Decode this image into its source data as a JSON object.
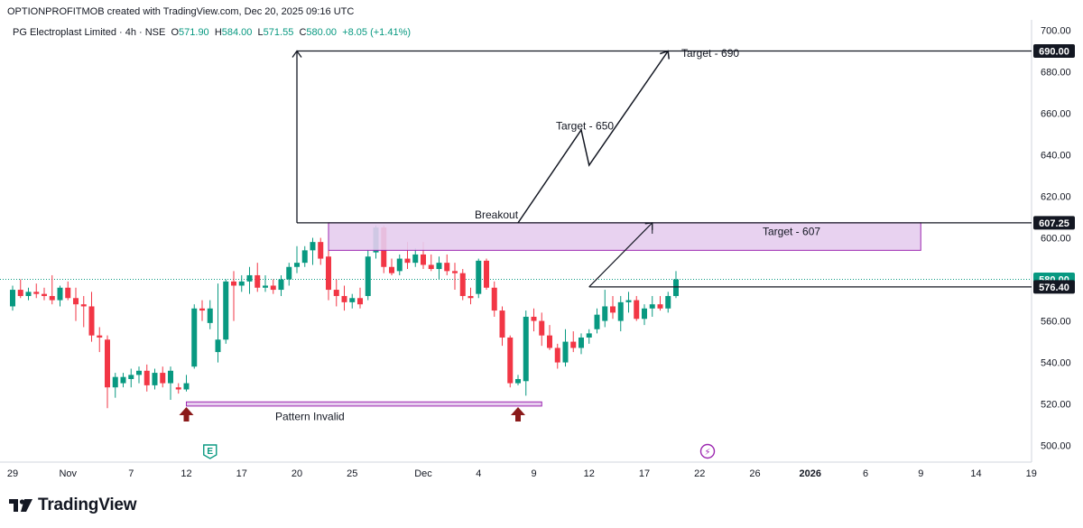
{
  "header": {
    "attribution": "OPTIONPROFITMOB created with TradingView.com, Dec 20, 2025 09:16 UTC"
  },
  "symbol": {
    "name": "PG Electroplast Limited · 4h · NSE",
    "o_label": "O",
    "o": "571.90",
    "h_label": "H",
    "h": "584.00",
    "l_label": "L",
    "l": "571.55",
    "c_label": "C",
    "c": "580.00",
    "change": "+8.05 (+1.41%)"
  },
  "brand": {
    "name": "TradingView",
    "logo_icon": "tradingview-logo-icon"
  },
  "colors": {
    "up": "#089981",
    "down": "#f23645",
    "zone": "#e6cdee",
    "zone_border": "#9c27b0",
    "arrow": "#8b1a1a"
  },
  "chart_data": {
    "type": "candlestick",
    "timeframe": "4h",
    "ylim": [
      492,
      705
    ],
    "y_ticks": [
      500,
      520,
      540,
      560,
      580,
      600,
      620,
      640,
      660,
      680,
      700
    ],
    "x_ticks": [
      {
        "label": "29",
        "slot": 0
      },
      {
        "label": "Nov",
        "slot": 7
      },
      {
        "label": "7",
        "slot": 15
      },
      {
        "label": "12",
        "slot": 22
      },
      {
        "label": "17",
        "slot": 29
      },
      {
        "label": "20",
        "slot": 36
      },
      {
        "label": "25",
        "slot": 43
      },
      {
        "label": "Dec",
        "slot": 52
      },
      {
        "label": "4",
        "slot": 59
      },
      {
        "label": "9",
        "slot": 66
      },
      {
        "label": "12",
        "slot": 73
      },
      {
        "label": "17",
        "slot": 80
      },
      {
        "label": "22",
        "slot": 87
      },
      {
        "label": "26",
        "slot": 94
      },
      {
        "label": "2026",
        "slot": 101
      },
      {
        "label": "6",
        "slot": 108
      },
      {
        "label": "9",
        "slot": 115
      },
      {
        "label": "14",
        "slot": 122
      },
      {
        "label": "19",
        "slot": 129
      }
    ],
    "candles": [
      {
        "o": 567,
        "h": 577,
        "l": 565,
        "c": 575
      },
      {
        "o": 575,
        "h": 580,
        "l": 571,
        "c": 572
      },
      {
        "o": 572,
        "h": 576,
        "l": 570,
        "c": 574
      },
      {
        "o": 574,
        "h": 578,
        "l": 571,
        "c": 573
      },
      {
        "o": 573,
        "h": 576,
        "l": 570,
        "c": 572
      },
      {
        "o": 572,
        "h": 582,
        "l": 568,
        "c": 570
      },
      {
        "o": 570,
        "h": 577,
        "l": 567,
        "c": 576
      },
      {
        "o": 576,
        "h": 579,
        "l": 570,
        "c": 571
      },
      {
        "o": 571,
        "h": 576,
        "l": 560,
        "c": 568
      },
      {
        "o": 568,
        "h": 572,
        "l": 557,
        "c": 567
      },
      {
        "o": 567,
        "h": 574,
        "l": 550,
        "c": 553
      },
      {
        "o": 553,
        "h": 557,
        "l": 545,
        "c": 552
      },
      {
        "o": 551,
        "h": 553,
        "l": 518,
        "c": 528
      },
      {
        "o": 528,
        "h": 535,
        "l": 523,
        "c": 533
      },
      {
        "o": 530,
        "h": 535,
        "l": 528,
        "c": 533
      },
      {
        "o": 532,
        "h": 537,
        "l": 528,
        "c": 534
      },
      {
        "o": 534,
        "h": 538,
        "l": 530,
        "c": 536
      },
      {
        "o": 536,
        "h": 539,
        "l": 526,
        "c": 529
      },
      {
        "o": 529,
        "h": 537,
        "l": 527,
        "c": 535
      },
      {
        "o": 535,
        "h": 538,
        "l": 528,
        "c": 530
      },
      {
        "o": 530,
        "h": 538,
        "l": 522,
        "c": 536
      },
      {
        "o": 528,
        "h": 530,
        "l": 525,
        "c": 527
      },
      {
        "o": 527,
        "h": 534,
        "l": 526,
        "c": 530
      },
      {
        "o": 538,
        "h": 568,
        "l": 537,
        "c": 566
      },
      {
        "o": 566,
        "h": 570,
        "l": 560,
        "c": 565
      },
      {
        "o": 559,
        "h": 570,
        "l": 556,
        "c": 566
      },
      {
        "o": 545,
        "h": 578,
        "l": 540,
        "c": 551
      },
      {
        "o": 551,
        "h": 580,
        "l": 549,
        "c": 579
      },
      {
        "o": 579,
        "h": 584,
        "l": 560,
        "c": 577
      },
      {
        "o": 577,
        "h": 582,
        "l": 574,
        "c": 579
      },
      {
        "o": 579,
        "h": 586,
        "l": 573,
        "c": 582
      },
      {
        "o": 582,
        "h": 588,
        "l": 574,
        "c": 576
      },
      {
        "o": 576,
        "h": 582,
        "l": 574,
        "c": 577
      },
      {
        "o": 577,
        "h": 580,
        "l": 573,
        "c": 575
      },
      {
        "o": 575,
        "h": 582,
        "l": 572,
        "c": 580
      },
      {
        "o": 580,
        "h": 588,
        "l": 577,
        "c": 586
      },
      {
        "o": 586,
        "h": 596,
        "l": 583,
        "c": 588
      },
      {
        "o": 588,
        "h": 596,
        "l": 586,
        "c": 594
      },
      {
        "o": 594,
        "h": 600,
        "l": 587,
        "c": 598
      },
      {
        "o": 598,
        "h": 600,
        "l": 587,
        "c": 590
      },
      {
        "o": 591,
        "h": 597,
        "l": 570,
        "c": 575
      },
      {
        "o": 575,
        "h": 580,
        "l": 567,
        "c": 572
      },
      {
        "o": 572,
        "h": 577,
        "l": 565,
        "c": 569
      },
      {
        "o": 569,
        "h": 573,
        "l": 566,
        "c": 571
      },
      {
        "o": 571,
        "h": 576,
        "l": 566,
        "c": 568
      },
      {
        "o": 572,
        "h": 594,
        "l": 570,
        "c": 591
      },
      {
        "o": 593,
        "h": 606,
        "l": 590,
        "c": 605
      },
      {
        "o": 605,
        "h": 606,
        "l": 583,
        "c": 586
      },
      {
        "o": 586,
        "h": 590,
        "l": 582,
        "c": 583
      },
      {
        "o": 584,
        "h": 592,
        "l": 582,
        "c": 590
      },
      {
        "o": 590,
        "h": 598,
        "l": 585,
        "c": 588
      },
      {
        "o": 588,
        "h": 595,
        "l": 586,
        "c": 592
      },
      {
        "o": 592,
        "h": 598,
        "l": 585,
        "c": 587
      },
      {
        "o": 587,
        "h": 592,
        "l": 584,
        "c": 585
      },
      {
        "o": 585,
        "h": 591,
        "l": 580,
        "c": 588
      },
      {
        "o": 588,
        "h": 592,
        "l": 582,
        "c": 584
      },
      {
        "o": 584,
        "h": 588,
        "l": 575,
        "c": 583
      },
      {
        "o": 583,
        "h": 585,
        "l": 570,
        "c": 572
      },
      {
        "o": 572,
        "h": 576,
        "l": 568,
        "c": 571
      },
      {
        "o": 573,
        "h": 590,
        "l": 571,
        "c": 589
      },
      {
        "o": 589,
        "h": 590,
        "l": 575,
        "c": 576
      },
      {
        "o": 576,
        "h": 579,
        "l": 562,
        "c": 565
      },
      {
        "o": 565,
        "h": 567,
        "l": 548,
        "c": 552
      },
      {
        "o": 552,
        "h": 553,
        "l": 528,
        "c": 530
      },
      {
        "o": 530,
        "h": 534,
        "l": 529,
        "c": 532
      },
      {
        "o": 531,
        "h": 565,
        "l": 524,
        "c": 562
      },
      {
        "o": 562,
        "h": 566,
        "l": 555,
        "c": 560
      },
      {
        "o": 560,
        "h": 564,
        "l": 548,
        "c": 553
      },
      {
        "o": 553,
        "h": 558,
        "l": 546,
        "c": 547
      },
      {
        "o": 547,
        "h": 549,
        "l": 537,
        "c": 540
      },
      {
        "o": 540,
        "h": 556,
        "l": 538,
        "c": 550
      },
      {
        "o": 550,
        "h": 555,
        "l": 545,
        "c": 547
      },
      {
        "o": 547,
        "h": 554,
        "l": 544,
        "c": 552
      },
      {
        "o": 552,
        "h": 556,
        "l": 549,
        "c": 554
      },
      {
        "o": 556,
        "h": 566,
        "l": 554,
        "c": 563
      },
      {
        "o": 560,
        "h": 575,
        "l": 557,
        "c": 567
      },
      {
        "o": 567,
        "h": 572,
        "l": 561,
        "c": 564
      },
      {
        "o": 560,
        "h": 572,
        "l": 555,
        "c": 569
      },
      {
        "o": 569,
        "h": 574,
        "l": 564,
        "c": 570
      },
      {
        "o": 570,
        "h": 572,
        "l": 560,
        "c": 561
      },
      {
        "o": 561,
        "h": 568,
        "l": 558,
        "c": 566
      },
      {
        "o": 566,
        "h": 572,
        "l": 562,
        "c": 568
      },
      {
        "o": 568,
        "h": 572,
        "l": 565,
        "c": 566
      },
      {
        "o": 566,
        "h": 574,
        "l": 564,
        "c": 572
      },
      {
        "o": 572,
        "h": 584,
        "l": 571,
        "c": 580
      }
    ],
    "price_tags": [
      {
        "label": "690.00",
        "value": 690,
        "style": "dark"
      },
      {
        "label": "607.25",
        "value": 607.25,
        "style": "dark"
      },
      {
        "label": "580.00",
        "value": 580,
        "style": "green"
      },
      {
        "label": "576.40",
        "value": 576.4,
        "style": "dark"
      }
    ],
    "last_price": 580,
    "annotations": {
      "target_690": "Target - 690",
      "target_650": "Target - 650",
      "target_607": "Target - 607",
      "breakout": "Breakout",
      "pattern_invalid": "Pattern Invalid"
    },
    "zone": {
      "slot_start": 40,
      "slot_end": 115,
      "y_low": 594,
      "y_high": 607.25
    },
    "levels": [
      690,
      607.25,
      576.4
    ],
    "pattern_base": {
      "slot_start": 22,
      "slot_end": 67,
      "y_low": 519,
      "y_high": 521
    },
    "events": [
      {
        "icon": "earnings-icon",
        "glyph": "E",
        "slot": 25
      },
      {
        "icon": "split-flash-icon",
        "glyph": "⚡",
        "slot": 88
      }
    ]
  }
}
